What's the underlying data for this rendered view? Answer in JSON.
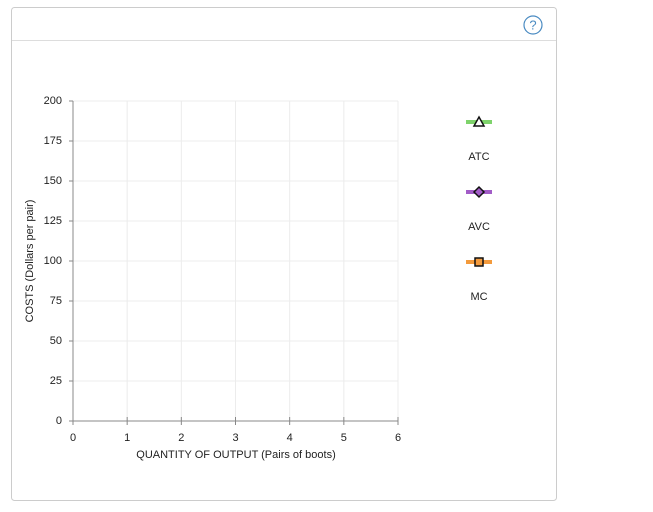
{
  "help_icon": "?",
  "chart_data": {
    "type": "line",
    "x_label": "QUANTITY OF OUTPUT (Pairs of boots)",
    "y_label": "COSTS (Dollars per pair)",
    "xlim": [
      0,
      6
    ],
    "xticks": [
      0,
      1,
      2,
      3,
      4,
      5,
      6
    ],
    "ylim": [
      0,
      200
    ],
    "yticks": [
      0,
      25,
      50,
      75,
      100,
      125,
      150,
      175,
      200
    ],
    "grid": true,
    "legend": "right",
    "series": [
      {
        "name": "ATC",
        "color": "#7ed36b",
        "marker": "triangle",
        "x": [],
        "values": []
      },
      {
        "name": "AVC",
        "color": "#a25cc7",
        "marker": "diamond",
        "x": [],
        "values": []
      },
      {
        "name": "MC",
        "color": "#f39a3c",
        "marker": "square",
        "x": [],
        "values": []
      }
    ]
  }
}
